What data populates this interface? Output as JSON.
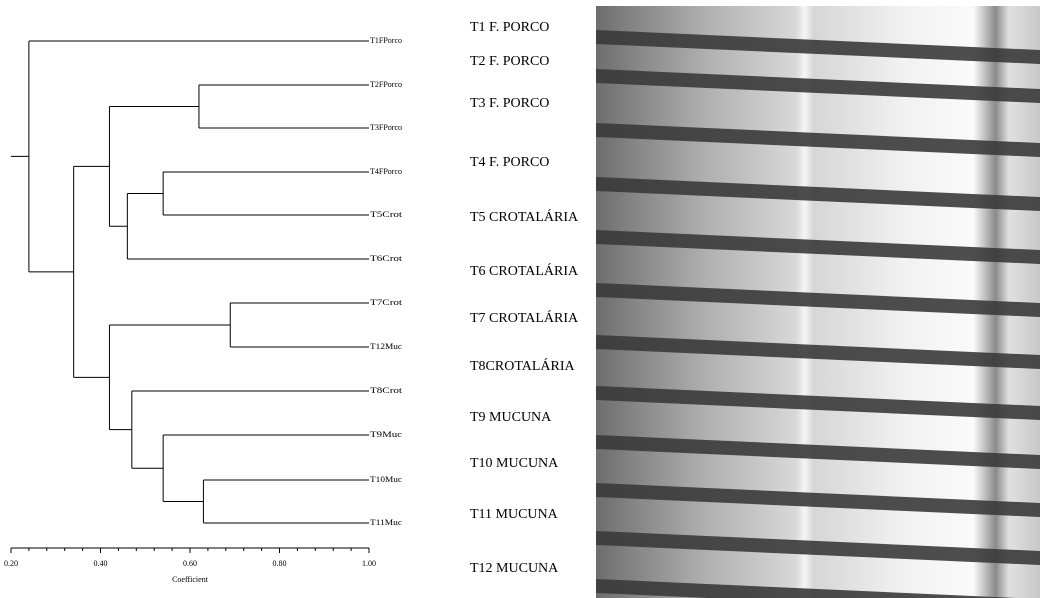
{
  "chart_data": {
    "type": "dendrogram",
    "x_label": "Coefficient",
    "xlim": [
      0.2,
      1.0
    ],
    "xticks": [
      {
        "value": 0.2,
        "label": "0.20"
      },
      {
        "value": 0.4,
        "label": "0.40"
      },
      {
        "value": 0.6,
        "label": "0.60"
      },
      {
        "value": 0.8,
        "label": "0.80"
      },
      {
        "value": 1.0,
        "label": "1.00"
      }
    ],
    "leaves": [
      "T1FPorco",
      "T2FPorco",
      "T3FPorco",
      "T4FPorco",
      "T5Crot",
      "T6Crot",
      "T7Crot",
      "T12Muc",
      "T8Crot",
      "T9Muc",
      "T10Muc",
      "T11Muc"
    ],
    "merges": [
      {
        "nodes": [
          1,
          2
        ],
        "height": 0.62
      },
      {
        "nodes": [
          3,
          4
        ],
        "height": 0.54
      },
      {
        "nodes": [
          13,
          5
        ],
        "height": 0.46
      },
      {
        "nodes": [
          12,
          14
        ],
        "height": 0.42
      },
      {
        "nodes": [
          6,
          7
        ],
        "height": 0.69
      },
      {
        "nodes": [
          10,
          11
        ],
        "height": 0.63
      },
      {
        "nodes": [
          9,
          17
        ],
        "height": 0.54
      },
      {
        "nodes": [
          8,
          18
        ],
        "height": 0.47
      },
      {
        "nodes": [
          16,
          19
        ],
        "height": 0.42
      },
      {
        "nodes": [
          15,
          20
        ],
        "height": 0.34
      },
      {
        "nodes": [
          0,
          21
        ],
        "height": 0.24
      }
    ]
  },
  "gel": {
    "lanes": [
      "T1 F. PORCO",
      "T2 F. PORCO",
      "T3 F. PORCO",
      "T4 F. PORCO",
      "T5 CROTALÁRIA",
      "T6 CROTALÁRIA",
      "T7 CROTALÁRIA",
      "T8CROTALÁRIA",
      "T9 MUCUNA",
      "T10 MUCUNA",
      "T11 MUCUNA",
      "T12  MUCUNA"
    ]
  }
}
